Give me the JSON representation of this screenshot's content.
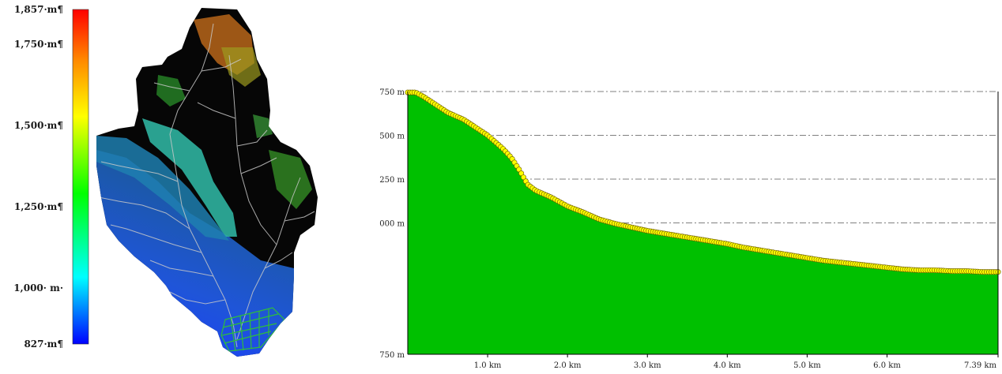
{
  "legend": {
    "labels": [
      {
        "text": "1,857·m¶",
        "value": 1857
      },
      {
        "text": "1,750·m¶",
        "value": 1750
      },
      {
        "text": "1,500·m¶",
        "value": 1500
      },
      {
        "text": "1,250·m¶",
        "value": 1250
      },
      {
        "text": "1,000· m·",
        "value": 1000
      },
      {
        "text": "827·m¶",
        "value": 827
      }
    ],
    "min": 827,
    "max": 1857,
    "colors": [
      "#0000ff",
      "#00ffff",
      "#00ff00",
      "#ffff00",
      "#ff8800",
      "#ff0000"
    ]
  },
  "map": {
    "stream_color": "#c8c8c8",
    "grid_color": "#2fbf3a"
  },
  "chart_data": {
    "type": "area",
    "xlim": [
      0,
      7.39
    ],
    "ylim": [
      -750,
      750
    ],
    "x_ticks": [
      {
        "value": 1.0,
        "label": "1.0 km"
      },
      {
        "value": 2.0,
        "label": "2.0 km"
      },
      {
        "value": 3.0,
        "label": "3.0 km"
      },
      {
        "value": 4.0,
        "label": "4.0 km"
      },
      {
        "value": 5.0,
        "label": "5.0 km"
      },
      {
        "value": 6.0,
        "label": "6.0 km"
      },
      {
        "value": 7.39,
        "label": "7.39 km"
      }
    ],
    "y_ticks": [
      {
        "value": 750,
        "label": "750 m"
      },
      {
        "value": 500,
        "label": "500 m"
      },
      {
        "value": 250,
        "label": "250 m"
      },
      {
        "value": 0,
        "label": "000 m"
      },
      {
        "value": -750,
        "label": "750 m"
      }
    ],
    "grid": true,
    "fill_color": "#00c000",
    "marker_color": "#ffff00",
    "series": [
      {
        "x": [
          0,
          0.1,
          0.2,
          0.3,
          0.4,
          0.5,
          0.6,
          0.7,
          0.8,
          0.9,
          1.0,
          1.1,
          1.2,
          1.3,
          1.4,
          1.5,
          1.6,
          1.7,
          1.8,
          1.9,
          2.0,
          2.2,
          2.4,
          2.6,
          2.8,
          3.0,
          3.2,
          3.4,
          3.6,
          3.8,
          4.0,
          4.2,
          4.4,
          4.6,
          4.8,
          5.0,
          5.2,
          5.4,
          5.6,
          5.8,
          6.0,
          6.2,
          6.4,
          6.6,
          6.8,
          7.0,
          7.2,
          7.39
        ],
        "values": [
          745,
          745,
          720,
          690,
          660,
          630,
          610,
          590,
          560,
          530,
          500,
          460,
          420,
          370,
          300,
          220,
          185,
          165,
          145,
          120,
          95,
          60,
          20,
          -5,
          -25,
          -45,
          -60,
          -75,
          -90,
          -105,
          -120,
          -140,
          -155,
          -170,
          -185,
          -200,
          -215,
          -225,
          -235,
          -245,
          -255,
          -265,
          -270,
          -270,
          -275,
          -275,
          -280,
          -280
        ]
      }
    ]
  }
}
